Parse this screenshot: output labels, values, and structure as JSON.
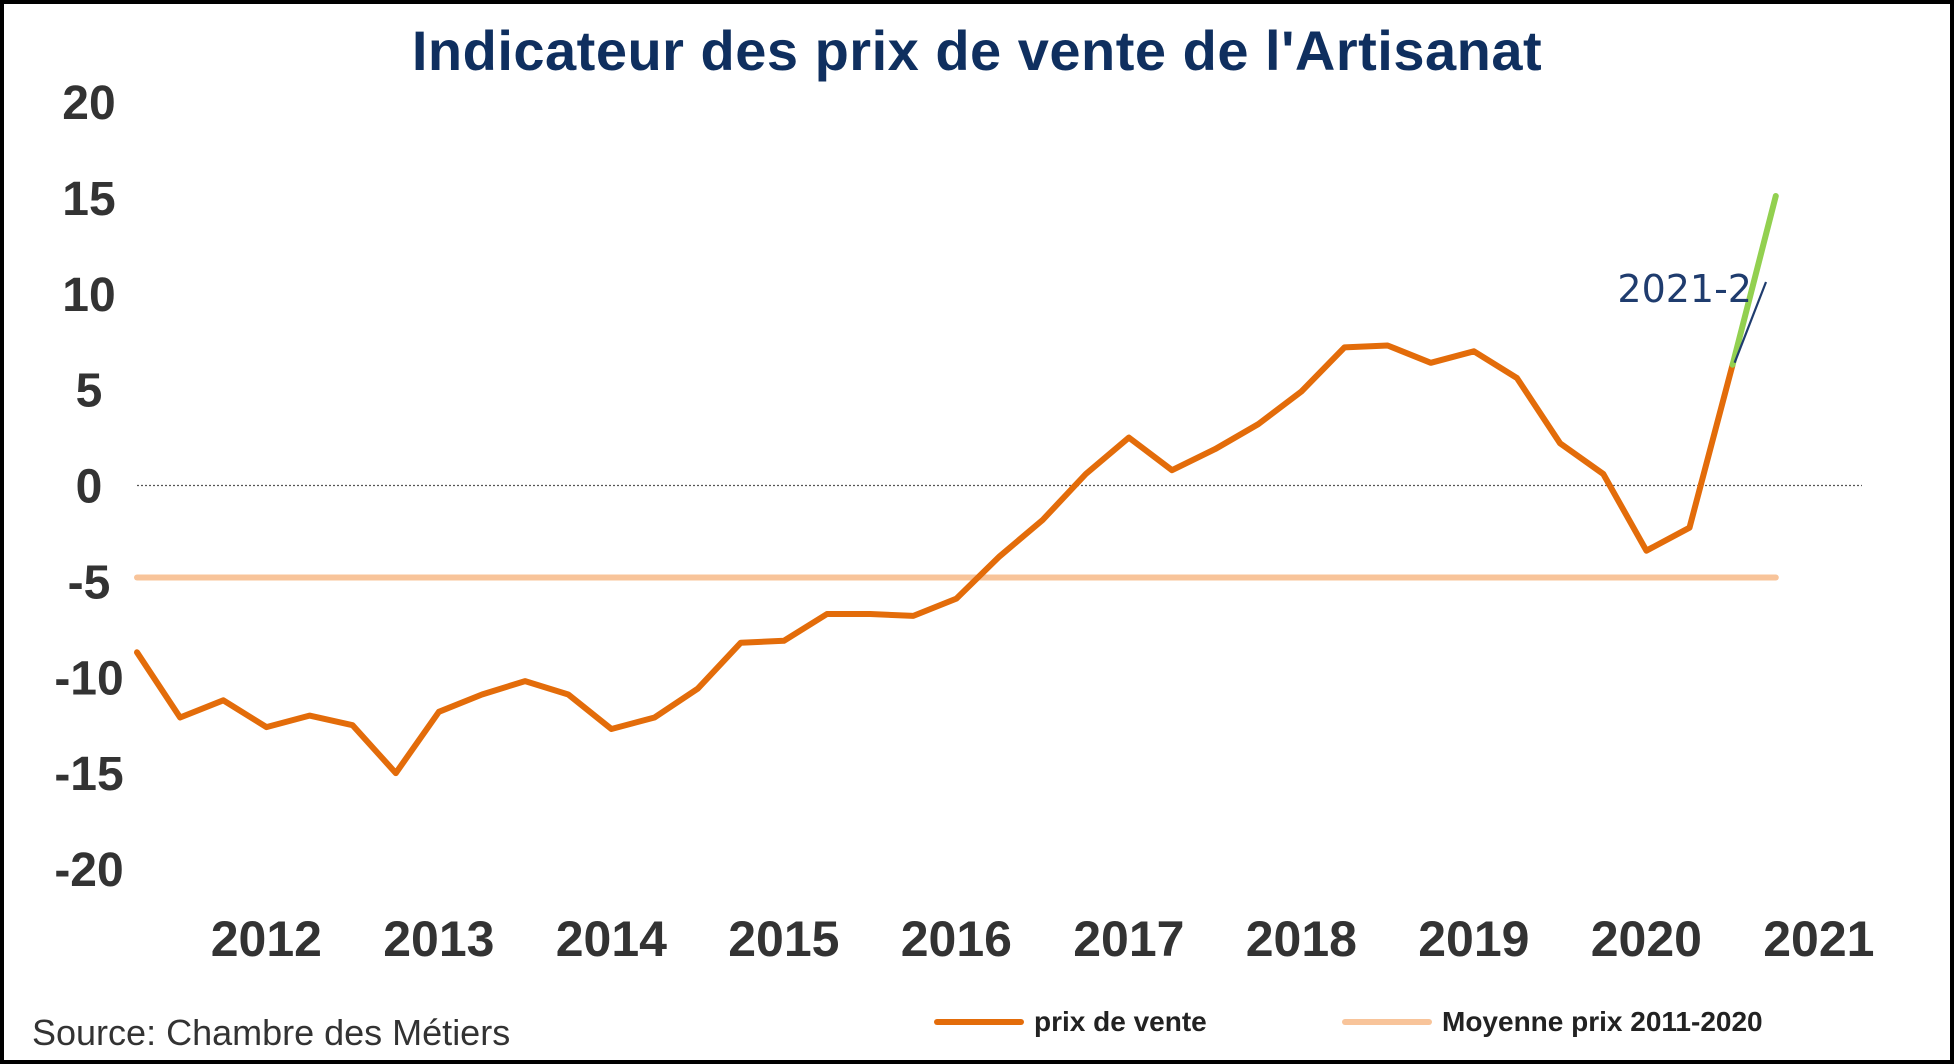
{
  "chart_data": {
    "type": "line",
    "title": "Indicateur des prix de vente de l'Artisanat",
    "xlabel": "",
    "ylabel": "",
    "ylim": [
      -20,
      20
    ],
    "yticks": [
      20,
      15,
      10,
      5,
      0,
      -5,
      -10,
      -15,
      -20
    ],
    "xticks": [
      "2012",
      "2013",
      "2014",
      "2015",
      "2016",
      "2017",
      "2018",
      "2019",
      "2020",
      "2021"
    ],
    "xlim": [
      2011.25,
      2021.25
    ],
    "series": [
      {
        "name": "prix de vente",
        "color": "#e36c0a",
        "points": [
          [
            2011.25,
            -8.7
          ],
          [
            2011.5,
            -12.1
          ],
          [
            2011.75,
            -11.2
          ],
          [
            2012.0,
            -12.6
          ],
          [
            2012.25,
            -12.0
          ],
          [
            2012.5,
            -12.5
          ],
          [
            2012.75,
            -15.0
          ],
          [
            2013.0,
            -11.8
          ],
          [
            2013.25,
            -10.9
          ],
          [
            2013.5,
            -10.2
          ],
          [
            2013.75,
            -10.9
          ],
          [
            2014.0,
            -12.7
          ],
          [
            2014.25,
            -12.1
          ],
          [
            2014.5,
            -10.6
          ],
          [
            2014.75,
            -8.2
          ],
          [
            2015.0,
            -8.1
          ],
          [
            2015.25,
            -6.7
          ],
          [
            2015.5,
            -6.7
          ],
          [
            2015.75,
            -6.8
          ],
          [
            2016.0,
            -5.9
          ],
          [
            2016.25,
            -3.7
          ],
          [
            2016.5,
            -1.8
          ],
          [
            2016.75,
            0.6
          ],
          [
            2017.0,
            2.5
          ],
          [
            2017.25,
            0.8
          ],
          [
            2017.5,
            1.9
          ],
          [
            2017.75,
            3.2
          ],
          [
            2018.0,
            4.9
          ],
          [
            2018.25,
            7.2
          ],
          [
            2018.5,
            7.3
          ],
          [
            2018.75,
            6.4
          ],
          [
            2019.0,
            7.0
          ],
          [
            2019.25,
            5.6
          ],
          [
            2019.5,
            2.2
          ],
          [
            2019.75,
            0.6
          ],
          [
            2020.0,
            -3.4
          ],
          [
            2020.25,
            -2.2
          ],
          [
            2020.5,
            6.3
          ]
        ]
      },
      {
        "name": "",
        "color": "#92d050",
        "points": [
          [
            2020.5,
            6.3
          ],
          [
            2020.75,
            15.1
          ]
        ]
      },
      {
        "name": "Moyenne prix 2011-2020",
        "color": "#f8c49a",
        "points": [
          [
            2011.25,
            -4.8
          ],
          [
            2020.75,
            -4.8
          ]
        ]
      }
    ],
    "zero_line": true,
    "annotations": [
      {
        "text": "2021-2",
        "x": 2020.5,
        "y": 6.3
      }
    ],
    "legend_position": "bottom-right"
  },
  "source": "Source: Chambre des Métiers",
  "legend": [
    {
      "label": "prix de vente",
      "color": "#e36c0a"
    },
    {
      "label": "Moyenne prix 2011-2020",
      "color": "#f8c49a"
    }
  ]
}
